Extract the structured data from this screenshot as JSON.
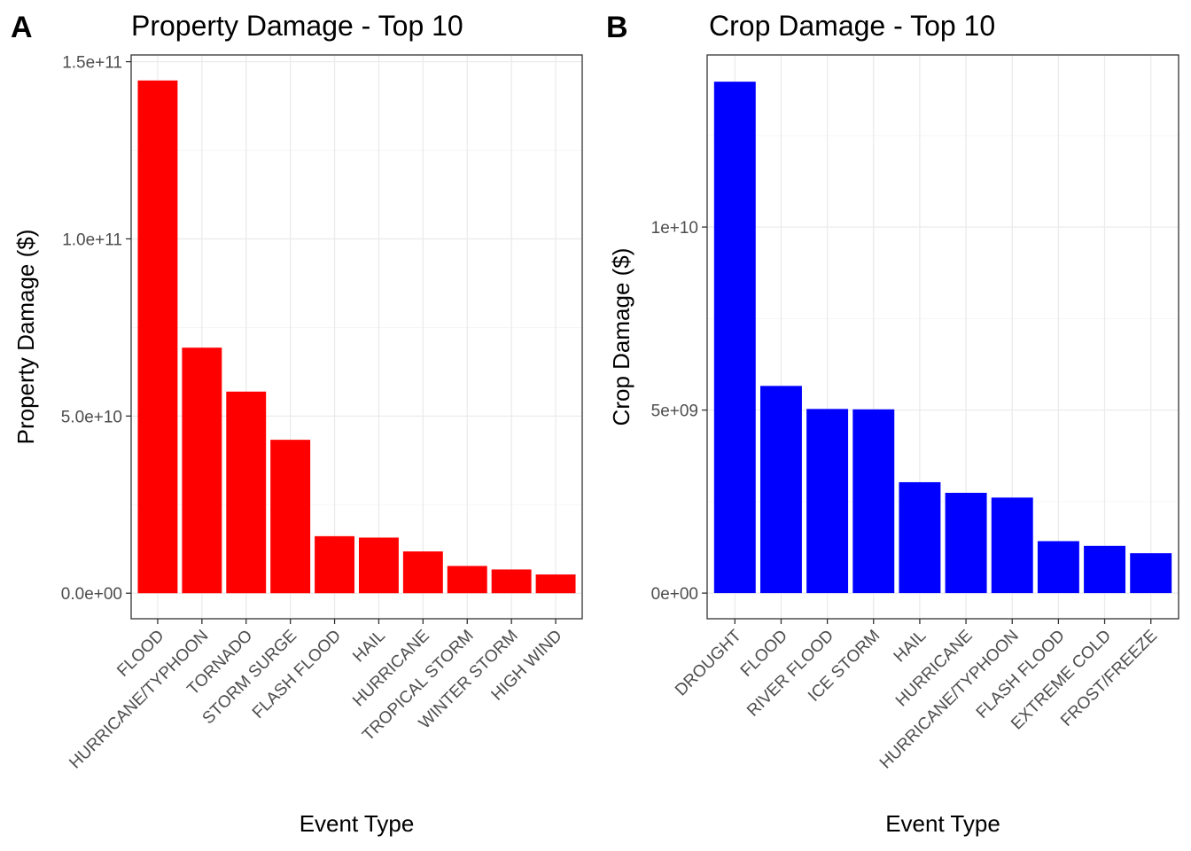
{
  "chart_data": [
    {
      "panel": "A",
      "type": "bar",
      "title": "Property Damage - Top 10",
      "xlabel": "Event Type",
      "ylabel": "Property Damage ($)",
      "color": "#ff0000",
      "categories": [
        "FLOOD",
        "HURRICANE/TYPHOON",
        "TORNADO",
        "STORM SURGE",
        "FLASH FLOOD",
        "HAIL",
        "HURRICANE",
        "TROPICAL STORM",
        "WINTER STORM",
        "HIGH WIND"
      ],
      "values": [
        144700000000,
        69300000000,
        56900000000,
        43300000000,
        16100000000,
        15700000000,
        11800000000,
        7700000000,
        6700000000,
        5300000000
      ],
      "ylim": [
        -7200000000,
        151900000000
      ],
      "yticks": [
        0,
        50000000000,
        100000000000,
        150000000000
      ],
      "yticklabels": [
        "0.0e+00",
        "5.0e+10",
        "1.0e+11",
        "1.5e+11"
      ],
      "grid": true
    },
    {
      "panel": "B",
      "type": "bar",
      "title": "Crop Damage - Top 10",
      "xlabel": "Event Type",
      "ylabel": "Crop Damage ($)",
      "color": "#0000ff",
      "categories": [
        "DROUGHT",
        "FLOOD",
        "RIVER FLOOD",
        "ICE STORM",
        "HAIL",
        "HURRICANE",
        "HURRICANE/TYPHOON",
        "FLASH FLOOD",
        "EXTREME COLD",
        "FROST/FREEZE"
      ],
      "values": [
        13970000000,
        5660000000,
        5030000000,
        5020000000,
        3030000000,
        2740000000,
        2610000000,
        1420000000,
        1290000000,
        1090000000
      ],
      "ylim": [
        -700000000,
        14700000000
      ],
      "yticks": [
        0,
        5000000000,
        10000000000
      ],
      "yticklabels": [
        "0e+00",
        "5e+09",
        "1e+10"
      ],
      "grid": true
    }
  ]
}
